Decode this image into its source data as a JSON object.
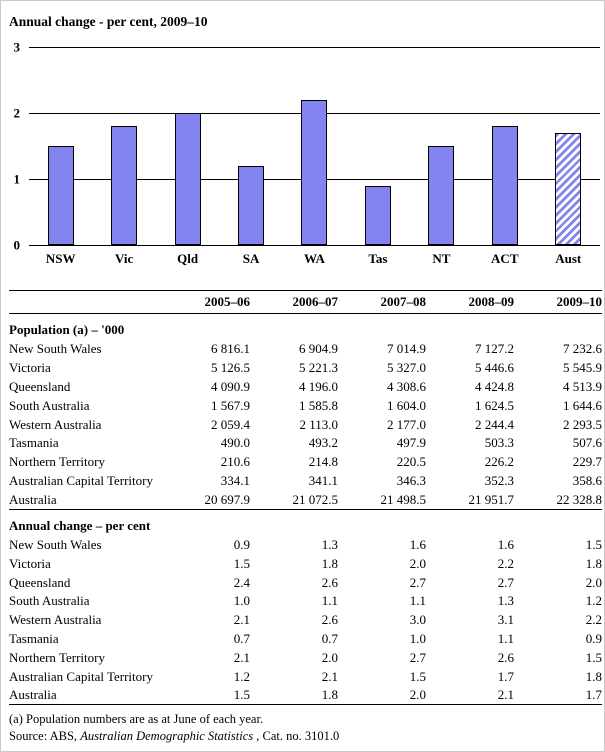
{
  "chart_data": [
    {
      "type": "bar",
      "title": "Annual change - per cent, 2009–10",
      "categories": [
        "NSW",
        "Vic",
        "Qld",
        "SA",
        "WA",
        "Tas",
        "NT",
        "ACT",
        "Aust"
      ],
      "values": [
        1.5,
        1.8,
        2.0,
        1.2,
        2.2,
        0.9,
        1.5,
        1.8,
        1.7
      ],
      "xlabel": "",
      "ylabel": "",
      "ylim": [
        0,
        3
      ],
      "yticks": [
        0,
        1,
        2,
        3
      ],
      "grid": true,
      "legend": "none",
      "bar_color": "#8484f0",
      "bar_outline_color": "#000000",
      "bar_styles": [
        "solid",
        "solid",
        "solid",
        "solid",
        "solid",
        "solid",
        "solid",
        "solid",
        "hatched"
      ]
    },
    {
      "type": "table",
      "columns": [
        "",
        "2005–06",
        "2006–07",
        "2007–08",
        "2008–09",
        "2009–10"
      ],
      "sections": [
        {
          "header": "Population (a) – '000",
          "rows": [
            {
              "label": "New South Wales",
              "values": [
                "6 816.1",
                "6 904.9",
                "7 014.9",
                "7 127.2",
                "7 232.6"
              ]
            },
            {
              "label": "Victoria",
              "values": [
                "5 126.5",
                "5 221.3",
                "5 327.0",
                "5 446.6",
                "5 545.9"
              ]
            },
            {
              "label": "Queensland",
              "values": [
                "4 090.9",
                "4 196.0",
                "4 308.6",
                "4 424.8",
                "4 513.9"
              ]
            },
            {
              "label": "South Australia",
              "values": [
                "1 567.9",
                "1 585.8",
                "1 604.0",
                "1 624.5",
                "1 644.6"
              ]
            },
            {
              "label": "Western Australia",
              "values": [
                "2 059.4",
                "2 113.0",
                "2 177.0",
                "2 244.4",
                "2 293.5"
              ]
            },
            {
              "label": "Tasmania",
              "values": [
                "490.0",
                "493.2",
                "497.9",
                "503.3",
                "507.6"
              ]
            },
            {
              "label": "Northern Territory",
              "values": [
                "210.6",
                "214.8",
                "220.5",
                "226.2",
                "229.7"
              ]
            },
            {
              "label": "Australian Capital Territory",
              "values": [
                "334.1",
                "341.1",
                "346.3",
                "352.3",
                "358.6"
              ]
            },
            {
              "label": "Australia",
              "values": [
                "20 697.9",
                "21 072.5",
                "21 498.5",
                "21 951.7",
                "22 328.8"
              ]
            }
          ]
        },
        {
          "header": "Annual change – per cent",
          "rows": [
            {
              "label": "New South Wales",
              "values": [
                "0.9",
                "1.3",
                "1.6",
                "1.6",
                "1.5"
              ]
            },
            {
              "label": "Victoria",
              "values": [
                "1.5",
                "1.8",
                "2.0",
                "2.2",
                "1.8"
              ]
            },
            {
              "label": "Queensland",
              "values": [
                "2.4",
                "2.6",
                "2.7",
                "2.7",
                "2.0"
              ]
            },
            {
              "label": "South Australia",
              "values": [
                "1.0",
                "1.1",
                "1.1",
                "1.3",
                "1.2"
              ]
            },
            {
              "label": "Western Australia",
              "values": [
                "2.1",
                "2.6",
                "3.0",
                "3.1",
                "2.2"
              ]
            },
            {
              "label": "Tasmania",
              "values": [
                "0.7",
                "0.7",
                "1.0",
                "1.1",
                "0.9"
              ]
            },
            {
              "label": "Northern Territory",
              "values": [
                "2.1",
                "2.0",
                "2.7",
                "2.6",
                "1.5"
              ]
            },
            {
              "label": "Australian Capital Territory",
              "values": [
                "1.2",
                "2.1",
                "1.5",
                "1.7",
                "1.8"
              ]
            },
            {
              "label": "Australia",
              "values": [
                "1.5",
                "1.8",
                "2.0",
                "2.1",
                "1.7"
              ]
            }
          ]
        }
      ]
    }
  ],
  "footnotes": {
    "note_a": "(a) Population numbers are as at June of each year.",
    "source_prefix": "Source: ABS, ",
    "source_title": "Australian Demographic Statistics",
    "source_suffix": " , Cat. no. 3101.0"
  }
}
